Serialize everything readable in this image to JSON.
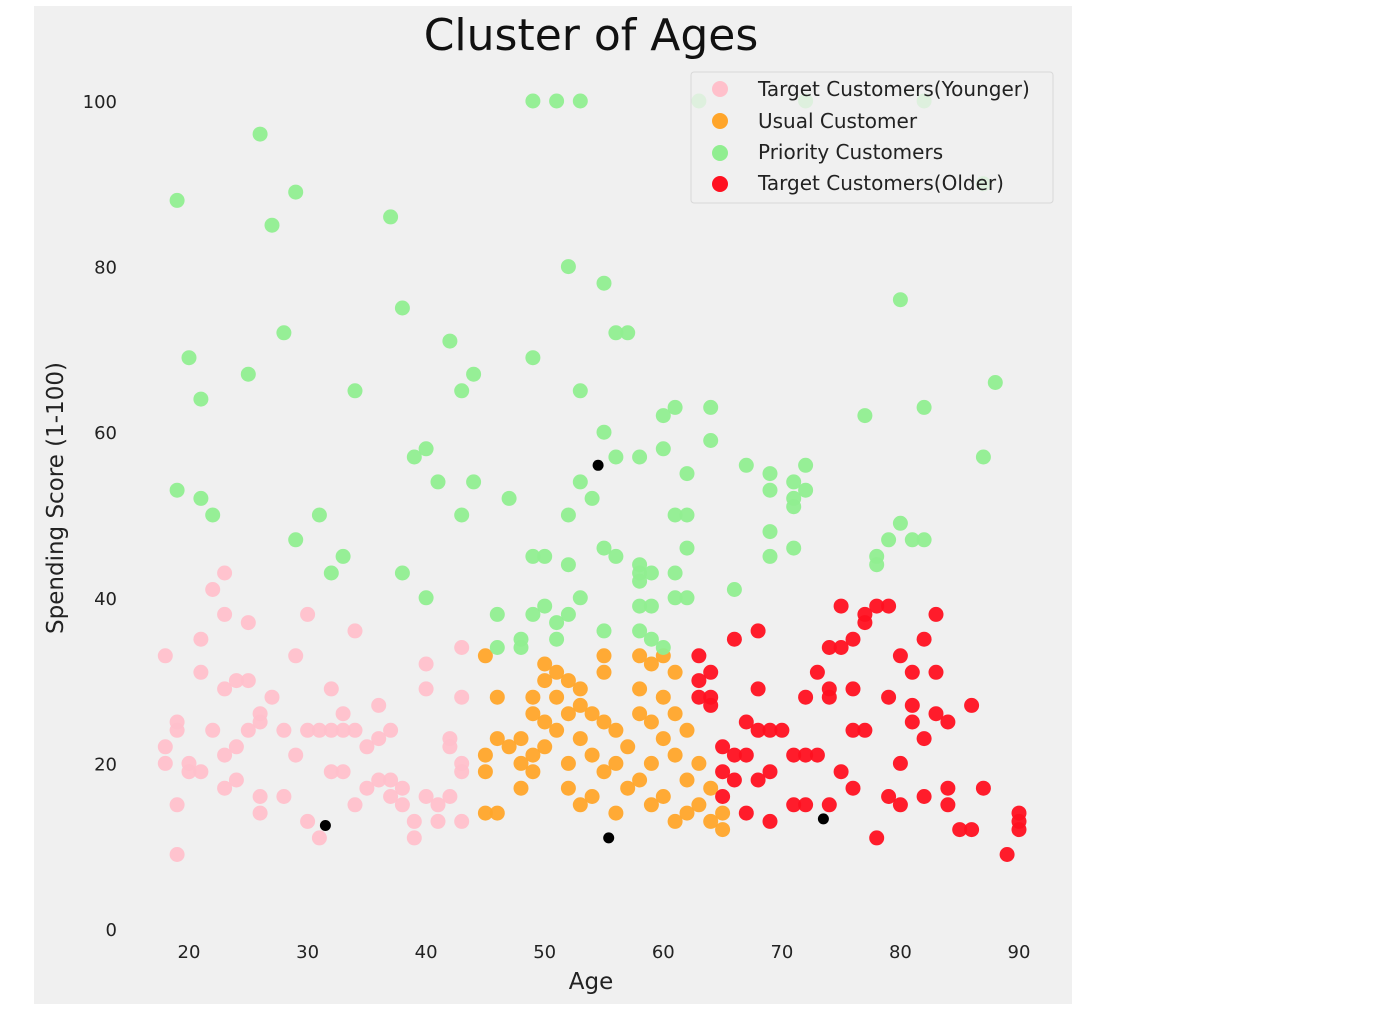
{
  "chart_data": {
    "type": "scatter",
    "title": "Cluster of Ages",
    "xlabel": "Age",
    "ylabel": "Spending Score (1-100)",
    "xlim": [
      15,
      92
    ],
    "ylim": [
      0,
      104
    ],
    "xticks": [
      20,
      30,
      40,
      50,
      60,
      70,
      80,
      90
    ],
    "yticks": [
      0,
      20,
      40,
      60,
      80,
      100
    ],
    "grid": false,
    "legend_position": "top-right",
    "colors": {
      "background": "#f0f0f0",
      "younger": "#ffc0cb",
      "usual": "#ffa52a",
      "priority": "#90ee90",
      "older": "#ff1020",
      "centroid": "#000000"
    },
    "series": [
      {
        "name": "Target Customers(Younger)",
        "color": "#ffc0cb",
        "points": [
          [
            18,
            33
          ],
          [
            18,
            22
          ],
          [
            18,
            20
          ],
          [
            19,
            25
          ],
          [
            19,
            24
          ],
          [
            19,
            15
          ],
          [
            19,
            9
          ],
          [
            20,
            20
          ],
          [
            20,
            19
          ],
          [
            21,
            35
          ],
          [
            21,
            31
          ],
          [
            21,
            19
          ],
          [
            22,
            41
          ],
          [
            22,
            24
          ],
          [
            23,
            43
          ],
          [
            23,
            38
          ],
          [
            23,
            29
          ],
          [
            23,
            21
          ],
          [
            23,
            17
          ],
          [
            24,
            30
          ],
          [
            24,
            22
          ],
          [
            24,
            18
          ],
          [
            25,
            37
          ],
          [
            25,
            24
          ],
          [
            25,
            30
          ],
          [
            26,
            25
          ],
          [
            26,
            26
          ],
          [
            26,
            16
          ],
          [
            26,
            14
          ],
          [
            27,
            28
          ],
          [
            28,
            24
          ],
          [
            28,
            16
          ],
          [
            29,
            33
          ],
          [
            29,
            21
          ],
          [
            30,
            38
          ],
          [
            30,
            24
          ],
          [
            30,
            13
          ],
          [
            31,
            24
          ],
          [
            31,
            11
          ],
          [
            32,
            29
          ],
          [
            32,
            24
          ],
          [
            32,
            19
          ],
          [
            33,
            26
          ],
          [
            33,
            24
          ],
          [
            33,
            19
          ],
          [
            34,
            36
          ],
          [
            34,
            24
          ],
          [
            34,
            15
          ],
          [
            35,
            22
          ],
          [
            35,
            17
          ],
          [
            36,
            27
          ],
          [
            36,
            23
          ],
          [
            36,
            18
          ],
          [
            37,
            24
          ],
          [
            37,
            18
          ],
          [
            37,
            16
          ],
          [
            38,
            17
          ],
          [
            38,
            15
          ],
          [
            39,
            13
          ],
          [
            39,
            11
          ],
          [
            40,
            32
          ],
          [
            40,
            29
          ],
          [
            40,
            16
          ],
          [
            41,
            15
          ],
          [
            41,
            13
          ],
          [
            42,
            23
          ],
          [
            42,
            22
          ],
          [
            42,
            16
          ],
          [
            43,
            34
          ],
          [
            43,
            28
          ],
          [
            43,
            20
          ],
          [
            43,
            19
          ],
          [
            43,
            13
          ]
        ]
      },
      {
        "name": "Usual Customer",
        "color": "#ffa52a",
        "points": [
          [
            45,
            33
          ],
          [
            45,
            21
          ],
          [
            45,
            19
          ],
          [
            45,
            14
          ],
          [
            46,
            28
          ],
          [
            46,
            23
          ],
          [
            46,
            14
          ],
          [
            47,
            22
          ],
          [
            48,
            23
          ],
          [
            48,
            20
          ],
          [
            48,
            17
          ],
          [
            49,
            28
          ],
          [
            49,
            26
          ],
          [
            49,
            21
          ],
          [
            49,
            19
          ],
          [
            50,
            32
          ],
          [
            50,
            30
          ],
          [
            50,
            25
          ],
          [
            50,
            22
          ],
          [
            51,
            31
          ],
          [
            51,
            28
          ],
          [
            51,
            24
          ],
          [
            52,
            30
          ],
          [
            52,
            26
          ],
          [
            52,
            20
          ],
          [
            52,
            17
          ],
          [
            53,
            29
          ],
          [
            53,
            27
          ],
          [
            53,
            23
          ],
          [
            53,
            15
          ],
          [
            54,
            26
          ],
          [
            54,
            21
          ],
          [
            54,
            16
          ],
          [
            55,
            33
          ],
          [
            55,
            31
          ],
          [
            55,
            25
          ],
          [
            55,
            19
          ],
          [
            56,
            24
          ],
          [
            56,
            20
          ],
          [
            56,
            14
          ],
          [
            57,
            22
          ],
          [
            57,
            17
          ],
          [
            58,
            33
          ],
          [
            58,
            29
          ],
          [
            58,
            26
          ],
          [
            58,
            18
          ],
          [
            59,
            32
          ],
          [
            59,
            25
          ],
          [
            59,
            20
          ],
          [
            59,
            15
          ],
          [
            60,
            33
          ],
          [
            60,
            28
          ],
          [
            60,
            23
          ],
          [
            60,
            16
          ],
          [
            61,
            31
          ],
          [
            61,
            26
          ],
          [
            61,
            21
          ],
          [
            61,
            13
          ],
          [
            62,
            24
          ],
          [
            62,
            18
          ],
          [
            62,
            14
          ],
          [
            63,
            20
          ],
          [
            63,
            15
          ],
          [
            64,
            17
          ],
          [
            64,
            13
          ],
          [
            65,
            14
          ],
          [
            65,
            12
          ]
        ]
      },
      {
        "name": "Priority Customers",
        "color": "#90ee90",
        "points": [
          [
            19,
            88
          ],
          [
            19,
            53
          ],
          [
            20,
            69
          ],
          [
            21,
            64
          ],
          [
            21,
            52
          ],
          [
            22,
            50
          ],
          [
            25,
            67
          ],
          [
            26,
            96
          ],
          [
            27,
            85
          ],
          [
            28,
            72
          ],
          [
            29,
            89
          ],
          [
            29,
            47
          ],
          [
            31,
            50
          ],
          [
            32,
            43
          ],
          [
            33,
            45
          ],
          [
            34,
            65
          ],
          [
            37,
            86
          ],
          [
            38,
            75
          ],
          [
            38,
            43
          ],
          [
            39,
            57
          ],
          [
            40,
            58
          ],
          [
            40,
            40
          ],
          [
            41,
            54
          ],
          [
            42,
            71
          ],
          [
            43,
            65
          ],
          [
            43,
            50
          ],
          [
            44,
            67
          ],
          [
            44,
            54
          ],
          [
            46,
            38
          ],
          [
            46,
            34
          ],
          [
            47,
            52
          ],
          [
            48,
            35
          ],
          [
            48,
            34
          ],
          [
            49,
            100
          ],
          [
            49,
            69
          ],
          [
            49,
            45
          ],
          [
            49,
            38
          ],
          [
            50,
            45
          ],
          [
            50,
            39
          ],
          [
            51,
            100
          ],
          [
            51,
            37
          ],
          [
            51,
            35
          ],
          [
            52,
            80
          ],
          [
            52,
            50
          ],
          [
            52,
            44
          ],
          [
            52,
            38
          ],
          [
            53,
            100
          ],
          [
            53,
            65
          ],
          [
            53,
            54
          ],
          [
            53,
            40
          ],
          [
            54,
            52
          ],
          [
            55,
            78
          ],
          [
            55,
            60
          ],
          [
            55,
            46
          ],
          [
            55,
            36
          ],
          [
            56,
            72
          ],
          [
            56,
            57
          ],
          [
            56,
            45
          ],
          [
            57,
            72
          ],
          [
            58,
            57
          ],
          [
            58,
            44
          ],
          [
            58,
            43
          ],
          [
            58,
            42
          ],
          [
            58,
            39
          ],
          [
            58,
            36
          ],
          [
            59,
            43
          ],
          [
            59,
            39
          ],
          [
            59,
            35
          ],
          [
            60,
            62
          ],
          [
            60,
            58
          ],
          [
            60,
            34
          ],
          [
            61,
            63
          ],
          [
            61,
            50
          ],
          [
            61,
            43
          ],
          [
            61,
            40
          ],
          [
            62,
            55
          ],
          [
            62,
            50
          ],
          [
            62,
            46
          ],
          [
            62,
            40
          ],
          [
            63,
            100
          ],
          [
            64,
            63
          ],
          [
            64,
            59
          ],
          [
            66,
            41
          ],
          [
            67,
            56
          ],
          [
            69,
            55
          ],
          [
            69,
            53
          ],
          [
            69,
            48
          ],
          [
            69,
            45
          ],
          [
            71,
            54
          ],
          [
            71,
            52
          ],
          [
            71,
            51
          ],
          [
            71,
            46
          ],
          [
            72,
            100
          ],
          [
            72,
            56
          ],
          [
            72,
            53
          ],
          [
            77,
            62
          ],
          [
            78,
            45
          ],
          [
            78,
            44
          ],
          [
            79,
            47
          ],
          [
            80,
            76
          ],
          [
            80,
            49
          ],
          [
            81,
            47
          ],
          [
            82,
            100
          ],
          [
            82,
            63
          ],
          [
            82,
            47
          ],
          [
            87,
            57
          ],
          [
            87,
            90
          ],
          [
            88,
            66
          ]
        ]
      },
      {
        "name": "Target Customers(Older)",
        "color": "#ff1020",
        "points": [
          [
            63,
            33
          ],
          [
            63,
            30
          ],
          [
            63,
            28
          ],
          [
            64,
            31
          ],
          [
            64,
            28
          ],
          [
            64,
            27
          ],
          [
            65,
            22
          ],
          [
            65,
            19
          ],
          [
            65,
            16
          ],
          [
            66,
            35
          ],
          [
            66,
            21
          ],
          [
            66,
            18
          ],
          [
            67,
            25
          ],
          [
            67,
            21
          ],
          [
            67,
            14
          ],
          [
            68,
            36
          ],
          [
            68,
            29
          ],
          [
            68,
            24
          ],
          [
            68,
            18
          ],
          [
            69,
            24
          ],
          [
            69,
            19
          ],
          [
            69,
            13
          ],
          [
            70,
            24
          ],
          [
            71,
            21
          ],
          [
            71,
            15
          ],
          [
            72,
            28
          ],
          [
            72,
            21
          ],
          [
            72,
            15
          ],
          [
            73,
            21
          ],
          [
            73,
            31
          ],
          [
            74,
            34
          ],
          [
            74,
            29
          ],
          [
            74,
            28
          ],
          [
            74,
            15
          ],
          [
            75,
            39
          ],
          [
            75,
            34
          ],
          [
            75,
            19
          ],
          [
            76,
            35
          ],
          [
            76,
            29
          ],
          [
            76,
            24
          ],
          [
            76,
            17
          ],
          [
            77,
            38
          ],
          [
            77,
            37
          ],
          [
            77,
            24
          ],
          [
            78,
            39
          ],
          [
            78,
            11
          ],
          [
            79,
            39
          ],
          [
            79,
            28
          ],
          [
            79,
            16
          ],
          [
            80,
            33
          ],
          [
            80,
            20
          ],
          [
            80,
            15
          ],
          [
            81,
            31
          ],
          [
            81,
            27
          ],
          [
            81,
            25
          ],
          [
            82,
            35
          ],
          [
            82,
            23
          ],
          [
            82,
            16
          ],
          [
            83,
            38
          ],
          [
            83,
            31
          ],
          [
            83,
            26
          ],
          [
            84,
            25
          ],
          [
            84,
            17
          ],
          [
            84,
            15
          ],
          [
            85,
            12
          ],
          [
            86,
            27
          ],
          [
            86,
            12
          ],
          [
            87,
            17
          ],
          [
            89,
            9
          ],
          [
            90,
            14
          ],
          [
            90,
            13
          ],
          [
            90,
            12
          ]
        ]
      }
    ],
    "centroids": [
      [
        31.5,
        12.5
      ],
      [
        54.5,
        56
      ],
      [
        55.4,
        11
      ],
      [
        73.5,
        13.3
      ]
    ],
    "legend_entries": [
      "Target Customers(Younger)",
      "Usual Customer",
      "Priority Customers",
      "Target Customers(Older)"
    ]
  }
}
